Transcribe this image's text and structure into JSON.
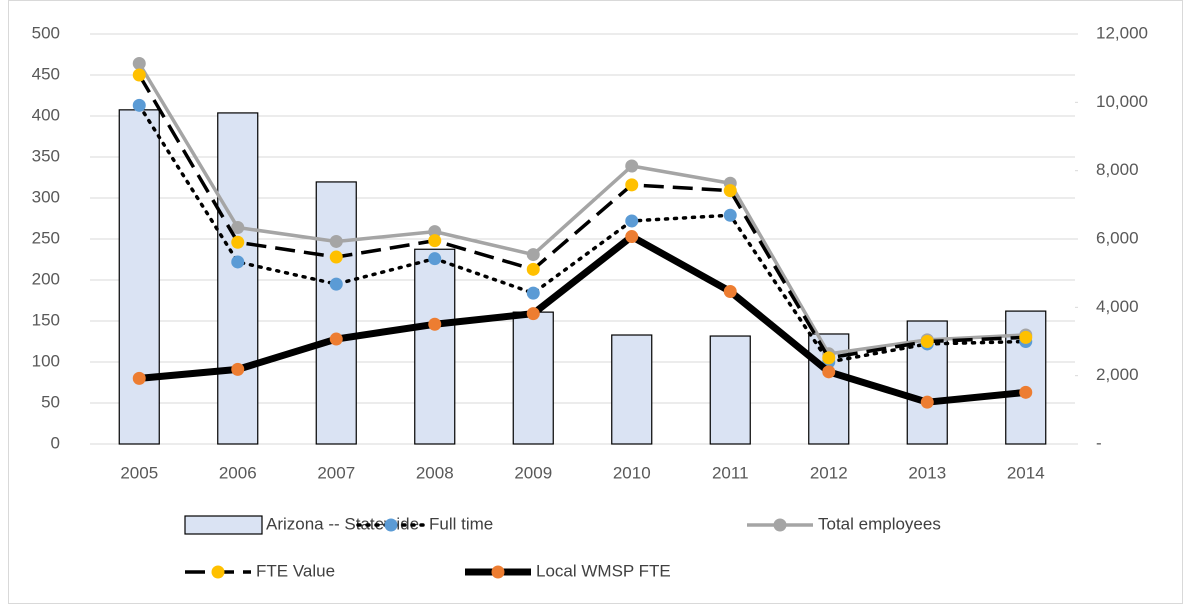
{
  "chart_data": {
    "type": "combo",
    "categories": [
      "2005",
      "2006",
      "2007",
      "2008",
      "2009",
      "2010",
      "2011",
      "2012",
      "2013",
      "2014"
    ],
    "ylim": [
      0,
      500
    ],
    "yticks": [
      0,
      50,
      100,
      150,
      200,
      250,
      300,
      350,
      400,
      450,
      500
    ],
    "y2lim": [
      0,
      12000
    ],
    "y2ticks": [
      {
        "value": 0,
        "label": "-"
      },
      {
        "value": 2000,
        "label": "2,000"
      },
      {
        "value": 4000,
        "label": "4,000"
      },
      {
        "value": 6000,
        "label": "6,000"
      },
      {
        "value": 8000,
        "label": "8,000"
      },
      {
        "value": 10000,
        "label": "10,000"
      },
      {
        "value": 12000,
        "label": "12,000"
      }
    ],
    "grid": true,
    "legend": "bottom",
    "series": [
      {
        "name": "Arizona -- Statewide",
        "type": "bar",
        "axis": "y2",
        "color": "#dae3f3",
        "values": [
          9780,
          9690,
          7670,
          5700,
          3860,
          3190,
          3160,
          3220,
          3600,
          3890
        ]
      },
      {
        "name": "Full time",
        "type": "line",
        "color": "#5b9bd5",
        "line_color": "#000000",
        "line_style": "dotted",
        "values": [
          413,
          222,
          195,
          226,
          184,
          272,
          279,
          100,
          122,
          125
        ]
      },
      {
        "name": "Total employees",
        "type": "line",
        "color": "#a5a5a5",
        "line_color": "#a5a5a5",
        "line_style": "solid",
        "values": [
          464,
          264,
          247,
          259,
          231,
          339,
          318,
          110,
          127,
          133
        ]
      },
      {
        "name": "FTE Value",
        "type": "line",
        "color": "#ffc000",
        "line_color": "#000000",
        "line_style": "dashed",
        "values": [
          450,
          246,
          228,
          248,
          213,
          316,
          309,
          105,
          125,
          130
        ]
      },
      {
        "name": "Local WMSP FTE",
        "type": "line",
        "color": "#ed7d31",
        "line_color": "#000000",
        "line_style": "thick",
        "values": [
          80,
          91,
          128,
          146,
          159,
          253,
          186,
          88,
          51,
          63
        ]
      }
    ]
  }
}
